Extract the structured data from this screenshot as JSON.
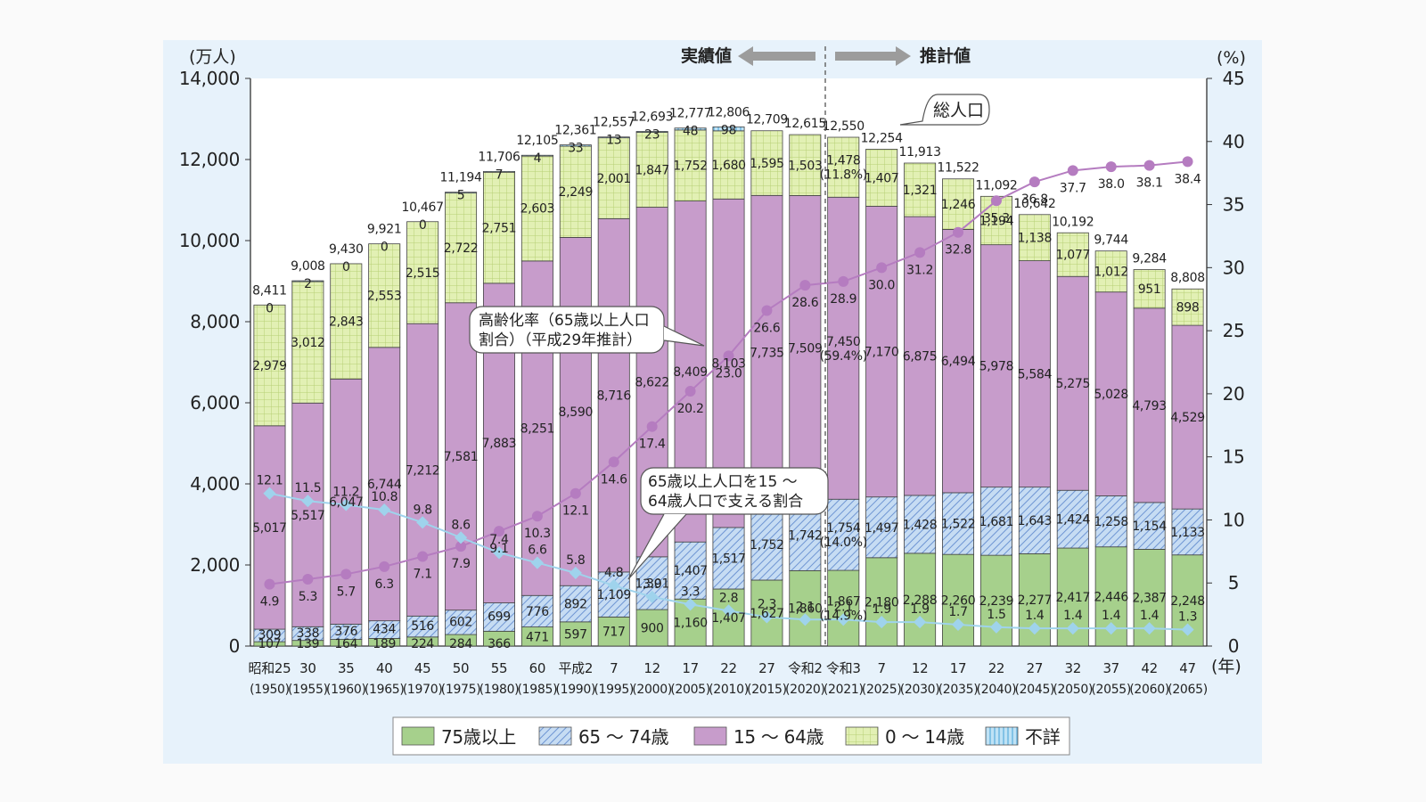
{
  "y_left_unit": "(万人)",
  "y_right_unit": "(%)",
  "x_unit": "(年)",
  "period_actual": "実績値",
  "period_projected": "推計値",
  "callouts": {
    "total": "総人口",
    "aging_line1": "高齢化率（65歳以上人口",
    "aging_line2": "割合）（平成29年推計）",
    "support_line1": "65歳以上人口を15 ～",
    "support_line2": "64歳人口で支える割合"
  },
  "colors": {
    "age75": "#a6d08c",
    "age65_74": "#b8d4f0",
    "age15_64": "#c79ccb",
    "age0_14": "#e2f0b4",
    "unknown": "#b4ddf2",
    "aging_line": "#b57cc0",
    "support_line": "#9fd3ec"
  },
  "chart_data": {
    "type": "bar",
    "stacked": true,
    "x_era": [
      "昭和25",
      "30",
      "35",
      "40",
      "45",
      "50",
      "55",
      "60",
      "平成2",
      "7",
      "12",
      "17",
      "22",
      "27",
      "令和2",
      "令和3",
      "7",
      "12",
      "17",
      "22",
      "27",
      "32",
      "37",
      "42",
      "47"
    ],
    "x_year": [
      "(1950)",
      "(1955)",
      "(1960)",
      "(1965)",
      "(1970)",
      "(1975)",
      "(1980)",
      "(1985)",
      "(1990)",
      "(1995)",
      "(2000)",
      "(2005)",
      "(2010)",
      "(2015)",
      "(2020)",
      "(2021)",
      "(2025)",
      "(2030)",
      "(2035)",
      "(2040)",
      "(2045)",
      "(2050)",
      "(2055)",
      "(2060)",
      "(2065)"
    ],
    "y_left": {
      "min": 0,
      "max": 14000,
      "ticks": [
        "0",
        "2,000",
        "4,000",
        "6,000",
        "8,000",
        "10,000",
        "12,000",
        "14,000"
      ]
    },
    "y_right": {
      "min": 0,
      "max": 45,
      "ticks": [
        "0",
        "5",
        "10",
        "15",
        "20",
        "25",
        "30",
        "35",
        "40",
        "45"
      ]
    },
    "legend": [
      "75歳以上",
      "65 ～ 74歳",
      "15 ～ 64歳",
      "0 ～ 14歳",
      "不詳"
    ],
    "series": [
      {
        "name": "75歳以上",
        "values": [
          107,
          139,
          164,
          189,
          224,
          284,
          366,
          471,
          597,
          717,
          900,
          1160,
          1407,
          1627,
          1860,
          1867,
          2180,
          2288,
          2260,
          2239,
          2277,
          2417,
          2446,
          2387,
          2248
        ]
      },
      {
        "name": "65 ～ 74歳",
        "values": [
          309,
          338,
          376,
          434,
          516,
          602,
          699,
          776,
          892,
          1109,
          1301,
          1407,
          1517,
          1752,
          1742,
          1754,
          1497,
          1428,
          1522,
          1681,
          1643,
          1424,
          1258,
          1154,
          1133
        ]
      },
      {
        "name": "15 ～ 64歳",
        "values": [
          5017,
          5517,
          6047,
          6744,
          7212,
          7581,
          7883,
          8251,
          8590,
          8716,
          8622,
          8409,
          8103,
          7735,
          7509,
          7450,
          7170,
          6875,
          6494,
          5978,
          5584,
          5275,
          5028,
          4793,
          4529
        ]
      },
      {
        "name": "0 ～ 14歳",
        "values": [
          2979,
          3012,
          2843,
          2553,
          2515,
          2722,
          2751,
          2603,
          2249,
          2001,
          1847,
          1752,
          1680,
          1595,
          1503,
          1478,
          1407,
          1321,
          1246,
          1194,
          1138,
          1077,
          1012,
          951,
          898
        ]
      },
      {
        "name": "不詳",
        "values": [
          0,
          2,
          0,
          0,
          0,
          5,
          7,
          4,
          33,
          13,
          23,
          48,
          98,
          0,
          0,
          0,
          0,
          0,
          0,
          0,
          0,
          0,
          0,
          0,
          0
        ]
      }
    ],
    "unknown_labels": [
      "0",
      "2",
      "0",
      "0",
      "0",
      "5",
      "7",
      "4",
      "33",
      "13",
      "23",
      "48",
      "98",
      "",
      "",
      "",
      "",
      "",
      "",
      "",
      "",
      "",
      "",
      "",
      ""
    ],
    "age75_labels": [
      "107",
      "139",
      "164",
      "189",
      "224",
      "284",
      "366",
      "471",
      "597",
      "717",
      "900",
      "1,160",
      "1,407",
      "1,627",
      "1,860",
      "1,867\n(14.9%)",
      "2,180",
      "2,288",
      "2,260",
      "2,239",
      "2,277",
      "2,417",
      "2,446",
      "2,387",
      "2,248"
    ],
    "age65_74_labels": [
      "309",
      "338",
      "376",
      "434",
      "516",
      "602",
      "699",
      "776",
      "892",
      "1,109",
      "1,301",
      "1,407",
      "1,517",
      "1,752",
      "1,742",
      "1,754\n(14.0%)",
      "1,497",
      "1,428",
      "1,522",
      "1,681",
      "1,643",
      "1,424",
      "1,258",
      "1,154",
      "1,133"
    ],
    "age15_64_labels": [
      "5,017",
      "5,517",
      "6,047",
      "6,744",
      "7,212",
      "7,581",
      "7,883",
      "8,251",
      "8,590",
      "8,716",
      "8,622",
      "8,409",
      "8,103",
      "7,735",
      "7,509",
      "7,450\n(59.4%)",
      "7,170",
      "6,875",
      "6,494",
      "5,978",
      "5,584",
      "5,275",
      "5,028",
      "4,793",
      "4,529"
    ],
    "age0_14_labels": [
      "2,979",
      "3,012",
      "2,843",
      "2,553",
      "2,515",
      "2,722",
      "2,751",
      "2,603",
      "2,249",
      "2,001",
      "1,847",
      "1,752",
      "1,680",
      "1,595",
      "1,503",
      "1,478\n(11.8%)",
      "1,407",
      "1,321",
      "1,246",
      "1,194",
      "1,138",
      "1,077",
      "1,012",
      "951",
      "898"
    ],
    "totals": [
      8411,
      9008,
      9430,
      9921,
      10467,
      11194,
      11706,
      12105,
      12361,
      12557,
      12693,
      12777,
      12806,
      12709,
      12615,
      12550,
      12254,
      11913,
      11522,
      11092,
      10642,
      10192,
      9744,
      9284,
      8808
    ],
    "total_labels": [
      "8,411",
      "9,008",
      "9,430",
      "9,921",
      "10,467",
      "11,194",
      "11,706",
      "12,105",
      "12,361",
      "12,557",
      "12,693",
      "12,777",
      "12,806",
      "12,709",
      "12,615",
      "12,550",
      "12,254",
      "11,913",
      "11,522",
      "11,092",
      "10,642",
      "10,192",
      "9,744",
      "9,284",
      "8,808"
    ],
    "aging_rate": [
      4.9,
      5.3,
      5.7,
      6.3,
      7.1,
      7.9,
      9.1,
      10.3,
      12.1,
      14.6,
      17.4,
      20.2,
      23.0,
      26.6,
      28.6,
      28.9,
      30.0,
      31.2,
      32.8,
      35.3,
      36.8,
      37.7,
      38.0,
      38.1,
      38.4
    ],
    "aging_rate_labels": [
      "4.9",
      "5.3",
      "5.7",
      "6.3",
      "7.1",
      "7.9",
      "9.1",
      "10.3",
      "12.1",
      "14.6",
      "17.4",
      "20.2",
      "23.0",
      "26.6",
      "28.6",
      "28.9",
      "30.0",
      "31.2",
      "32.8",
      "35.3",
      "36.8",
      "37.7",
      "38.0",
      "38.1",
      "38.4"
    ],
    "support_ratio": [
      12.1,
      11.5,
      11.2,
      10.8,
      9.8,
      8.6,
      7.4,
      6.6,
      5.8,
      4.8,
      3.9,
      3.3,
      2.8,
      2.3,
      2.1,
      2.1,
      1.9,
      1.9,
      1.7,
      1.5,
      1.4,
      1.4,
      1.4,
      1.4,
      1.3
    ],
    "support_ratio_labels": [
      "12.1",
      "11.5",
      "11.2",
      "10.8",
      "9.8",
      "8.6",
      "7.4",
      "6.6",
      "5.8",
      "4.8",
      "3.9",
      "3.3",
      "2.8",
      "2.3",
      "2.1",
      "2.1",
      "1.9",
      "1.9",
      "1.7",
      "1.5",
      "1.4",
      "1.4",
      "1.4",
      "1.4",
      "1.3"
    ]
  }
}
